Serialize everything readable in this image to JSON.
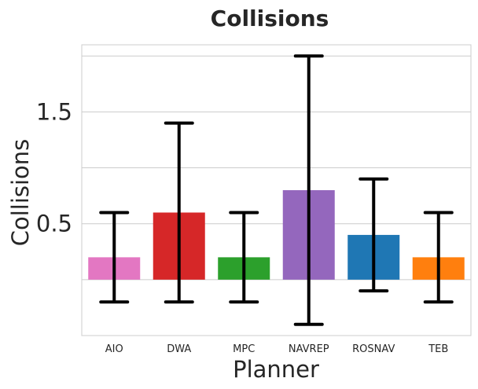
{
  "chart_data": {
    "type": "bar",
    "title": "Collisions",
    "xlabel": "Planner",
    "ylabel": "Collisions",
    "categories": [
      "AIO",
      "DWA",
      "MPC",
      "NAVREP",
      "ROSNAV",
      "TEB"
    ],
    "values": [
      0.2,
      0.6,
      0.2,
      0.8,
      0.4,
      0.2
    ],
    "error": [
      0.4,
      0.8,
      0.4,
      1.2,
      0.5,
      0.4
    ],
    "colors": [
      "#e377c2",
      "#d62728",
      "#2ca02c",
      "#9467bd",
      "#1f77b4",
      "#ff7f0e"
    ],
    "ylim": [
      -0.5,
      2.1
    ],
    "yticks": [
      0.5,
      1.5
    ],
    "ytick_labels": [
      "0.5",
      "1.5"
    ],
    "grid_lines": [
      0,
      0.5,
      1,
      1.5,
      2
    ],
    "grid": true,
    "legend": "none"
  }
}
